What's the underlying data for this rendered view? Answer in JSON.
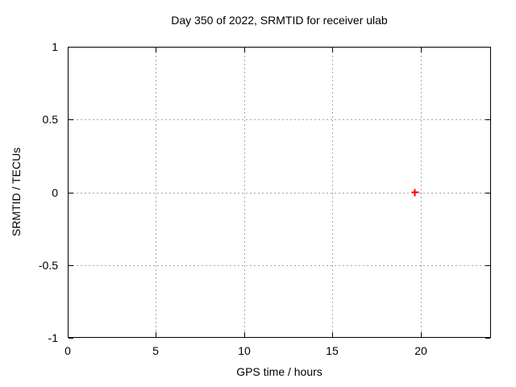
{
  "chart_data": {
    "type": "scatter",
    "title": "Day 350 of 2022, SRMTID for receiver ulab",
    "xlabel": "GPS time / hours",
    "ylabel": "SRMTID / TECUs",
    "xlim": [
      0,
      24
    ],
    "ylim": [
      -1,
      1
    ],
    "xticks": [
      0,
      5,
      10,
      15,
      20
    ],
    "xtick_labels": [
      "0",
      "5",
      "10",
      "15",
      "20"
    ],
    "yticks": [
      1,
      0.5,
      0,
      -0.5,
      -1
    ],
    "ytick_labels": [
      "1",
      "0.5",
      "0",
      "-0.5",
      "-1"
    ],
    "grid": true,
    "legend": "none",
    "series": [
      {
        "name": "SRMTID",
        "marker": "plus",
        "color": "#ff0000",
        "points": [
          {
            "x": 19.7,
            "y": 0.0
          }
        ]
      }
    ],
    "colors": {
      "background": "#ffffff",
      "frame": "#000000",
      "grid": "#a6a6a6",
      "text": "#000000"
    }
  }
}
